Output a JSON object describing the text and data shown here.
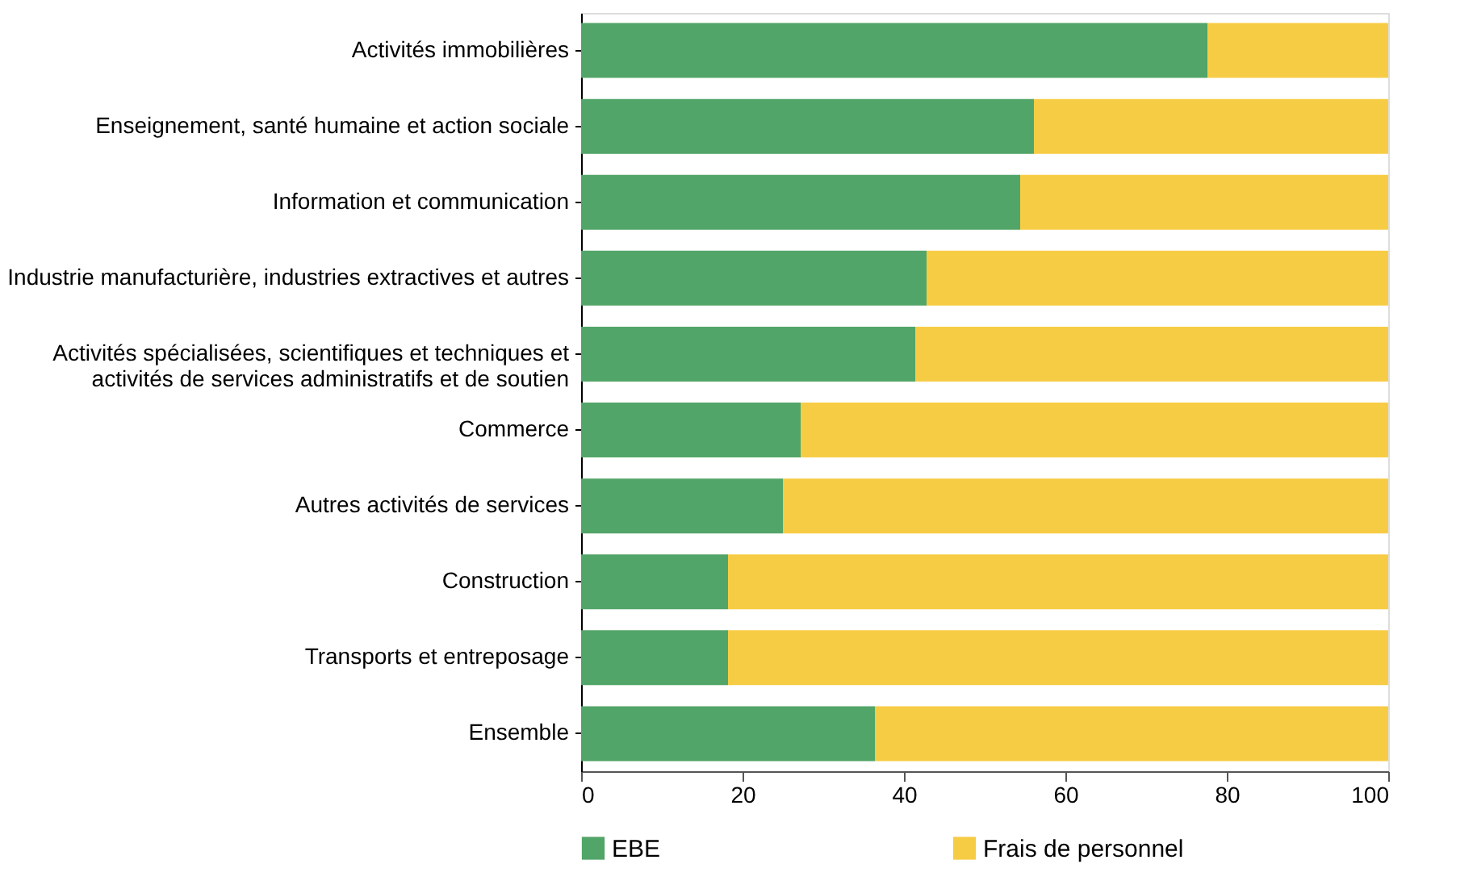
{
  "chart_data": {
    "type": "bar",
    "orientation": "horizontal",
    "stacked": true,
    "categories": [
      "Activités immobilières",
      "Enseignement, santé humaine et action sociale",
      "Information et communication",
      "Industrie manufacturière, industries extractives et autres",
      "Activités spécialisées, scientifiques et techniques et\nactivités de services administratifs et de soutien",
      "Commerce",
      "Autres activités de services",
      "Construction",
      "Transports et entreposage",
      "Ensemble"
    ],
    "series": [
      {
        "name": "EBE",
        "color": "#52a568",
        "values": [
          77.6,
          56.1,
          54.4,
          42.8,
          41.4,
          27.2,
          25.0,
          18.2,
          18.2,
          36.4
        ]
      },
      {
        "name": "Frais de personnel",
        "color": "#f7cc45",
        "values": [
          22.4,
          43.9,
          45.6,
          57.2,
          58.6,
          72.8,
          75.0,
          81.8,
          81.8,
          63.6
        ]
      }
    ],
    "xlim": [
      0,
      100
    ],
    "xticks": [
      0,
      20,
      40,
      60,
      80,
      100
    ],
    "grid": false,
    "legend": "bottom"
  }
}
